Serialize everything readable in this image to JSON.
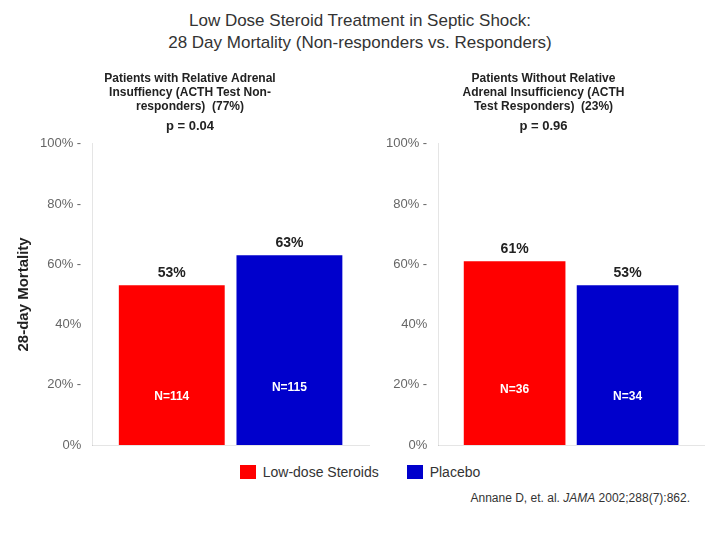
{
  "title": "Low Dose Steroid Treatment in Septic Shock:\n28 Day Mortality (Non-responders vs. Responders)",
  "legend": "bottom",
  "annotation": [
    "Annane D, et. al. ",
    "JAMA",
    " 2002;288(7):862."
  ],
  "chart_data": [
    {
      "type": "bar",
      "title": "Patients with Relative Adrenal\nInsuffiency (ACTH Test Non-\nresponders)  (77%)",
      "subtitle": "p = 0.04",
      "ylabel": "28-day Mortality",
      "categories": [
        null
      ],
      "series": [
        {
          "name": "Low-dose Steroids",
          "color": "#FF0000",
          "values": [
            53
          ],
          "value_labels": [
            "53%"
          ],
          "n_labels": [
            "N=114"
          ]
        },
        {
          "name": "Placebo",
          "color": "#0000CC",
          "values": [
            63
          ],
          "value_labels": [
            "63%"
          ],
          "n_labels": [
            "N=115"
          ]
        }
      ],
      "ylim": [
        0,
        100
      ],
      "yticks": [
        {
          "value": 0,
          "label": "0%"
        },
        {
          "value": 20,
          "label": "20% -"
        },
        {
          "value": 40,
          "label": "40%"
        },
        {
          "value": 60,
          "label": "60% -"
        },
        {
          "value": 80,
          "label": "80% -"
        },
        {
          "value": 100,
          "label": "100% -"
        }
      ],
      "grid": false,
      "data_labels": true,
      "tick_labels": "y"
    },
    {
      "type": "bar",
      "title": "Patients Without Relative\nAdrenal Insufficiency (ACTH\nTest Responders)  (23%)",
      "subtitle": "p = 0.96",
      "categories": [
        null
      ],
      "series": [
        {
          "name": "Low-dose Steroids",
          "color": "#FF0000",
          "values": [
            61
          ],
          "value_labels": [
            "61%"
          ],
          "n_labels": [
            "N=36"
          ]
        },
        {
          "name": "Placebo",
          "color": "#0000CC",
          "values": [
            53
          ],
          "value_labels": [
            "53%"
          ],
          "n_labels": [
            "N=34"
          ]
        }
      ],
      "ylim": [
        0,
        100
      ],
      "yticks": [
        {
          "value": 0,
          "label": "0%"
        },
        {
          "value": 20,
          "label": "20% -"
        },
        {
          "value": 40,
          "label": "40%"
        },
        {
          "value": 60,
          "label": "60% -"
        },
        {
          "value": 80,
          "label": "80% -"
        },
        {
          "value": 100,
          "label": "100% -"
        }
      ],
      "grid": false,
      "data_labels": true,
      "tick_labels": "y"
    }
  ]
}
